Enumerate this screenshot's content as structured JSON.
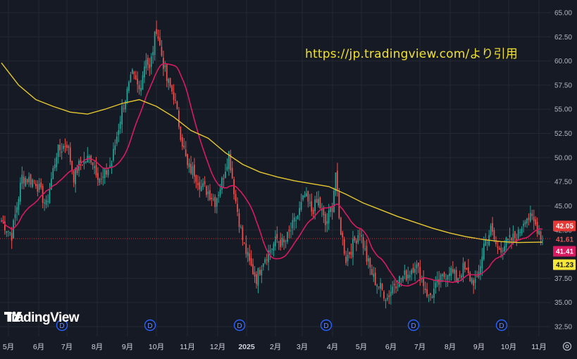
{
  "source_note": "https://jp.tradingview.com/より引用",
  "brand": {
    "name": "TradingView",
    "logo_icon": "tradingview-logo-icon"
  },
  "colors": {
    "background": "#161a25",
    "grid": "#242833",
    "up": "#26a69a",
    "down": "#ef5350",
    "ma_short": "#d81b60",
    "ma_long": "#e6c830",
    "price_line": "#d32f2f",
    "dividend_marker": "#2962ff",
    "source_note": "#f0e030"
  },
  "icons": {
    "settings": "gear-icon"
  },
  "chart_data": {
    "type": "candlestick",
    "title": "",
    "ylim": [
      32.5,
      65.0
    ],
    "y_ticks": [
      "65.00",
      "62.50",
      "60.00",
      "57.50",
      "55.00",
      "52.50",
      "50.00",
      "47.50",
      "45.00",
      "42.50",
      "40.00",
      "37.50",
      "35.00",
      "32.50"
    ],
    "x_ticks": [
      "5月",
      "6月",
      "7月",
      "8月",
      "9月",
      "10月",
      "11月",
      "12月",
      "2025",
      "2月",
      "3月",
      "4月",
      "5月",
      "6月",
      "7月",
      "8月",
      "9月",
      "10月",
      "11月"
    ],
    "close_path": [
      [
        0,
        43.5
      ],
      [
        6,
        42.0
      ],
      [
        12,
        48.0
      ],
      [
        20,
        47.5
      ],
      [
        26,
        45.0
      ],
      [
        32,
        50.5
      ],
      [
        38,
        51.5
      ],
      [
        42,
        48.0
      ],
      [
        46,
        49.5
      ],
      [
        52,
        50.0
      ],
      [
        58,
        47.5
      ],
      [
        64,
        49.5
      ],
      [
        70,
        55.0
      ],
      [
        76,
        58.5
      ],
      [
        80,
        57.0
      ],
      [
        84,
        60.5
      ],
      [
        86,
        59.0
      ],
      [
        90,
        63.5
      ],
      [
        92,
        61.5
      ],
      [
        96,
        58.0
      ],
      [
        100,
        56.5
      ],
      [
        104,
        52.5
      ],
      [
        108,
        49.0
      ],
      [
        112,
        48.5
      ],
      [
        116,
        47.0
      ],
      [
        120,
        46.5
      ],
      [
        124,
        45.5
      ],
      [
        128,
        47.5
      ],
      [
        132,
        50.5
      ],
      [
        136,
        45.5
      ],
      [
        140,
        41.5
      ],
      [
        144,
        39.0
      ],
      [
        148,
        37.5
      ],
      [
        152,
        39.5
      ],
      [
        156,
        40.5
      ],
      [
        160,
        41.5
      ],
      [
        164,
        41.0
      ],
      [
        168,
        42.5
      ],
      [
        172,
        44.0
      ],
      [
        176,
        46.0
      ],
      [
        180,
        44.5
      ],
      [
        184,
        45.5
      ],
      [
        188,
        43.0
      ],
      [
        192,
        45.0
      ],
      [
        194,
        48.5
      ],
      [
        196,
        43.5
      ],
      [
        200,
        39.5
      ],
      [
        204,
        41.0
      ],
      [
        208,
        42.5
      ],
      [
        212,
        39.5
      ],
      [
        216,
        37.5
      ],
      [
        220,
        36.5
      ],
      [
        224,
        35.5
      ],
      [
        228,
        37.0
      ],
      [
        232,
        37.5
      ],
      [
        236,
        38.0
      ],
      [
        240,
        39.0
      ],
      [
        244,
        37.5
      ],
      [
        248,
        35.5
      ],
      [
        252,
        36.5
      ],
      [
        256,
        37.5
      ],
      [
        260,
        38.5
      ],
      [
        264,
        37.5
      ],
      [
        268,
        38.5
      ],
      [
        272,
        37.5
      ],
      [
        276,
        37.0
      ],
      [
        280,
        41.0
      ],
      [
        284,
        42.5
      ],
      [
        288,
        40.5
      ],
      [
        292,
        41.0
      ],
      [
        296,
        41.5
      ],
      [
        300,
        42.0
      ],
      [
        304,
        44.0
      ],
      [
        308,
        43.5
      ],
      [
        312,
        42.5
      ],
      [
        314,
        41.5
      ]
    ],
    "ma_short": {
      "color": "#d81b60"
    },
    "ma_long": {
      "color": "#e6c830",
      "points": [
        [
          0,
          59.8
        ],
        [
          10,
          57.5
        ],
        [
          20,
          56.0
        ],
        [
          30,
          55.3
        ],
        [
          40,
          54.7
        ],
        [
          50,
          54.5
        ],
        [
          60,
          55.0
        ],
        [
          70,
          55.6
        ],
        [
          80,
          56.0
        ],
        [
          90,
          55.3
        ],
        [
          100,
          54.2
        ],
        [
          110,
          52.8
        ],
        [
          120,
          52.0
        ],
        [
          130,
          50.5
        ],
        [
          140,
          49.3
        ],
        [
          150,
          48.5
        ],
        [
          160,
          48.0
        ],
        [
          170,
          47.6
        ],
        [
          180,
          47.3
        ],
        [
          190,
          47.0
        ],
        [
          200,
          46.2
        ],
        [
          210,
          45.3
        ],
        [
          220,
          44.6
        ],
        [
          230,
          43.9
        ],
        [
          240,
          43.3
        ],
        [
          250,
          42.7
        ],
        [
          260,
          42.2
        ],
        [
          270,
          41.8
        ],
        [
          280,
          41.5
        ],
        [
          290,
          41.3
        ],
        [
          300,
          41.2
        ],
        [
          314,
          41.25
        ]
      ]
    },
    "current_price_line": 41.61,
    "price_tags": [
      {
        "value": "42.05",
        "kind": "last"
      },
      {
        "value": "41.61",
        "kind": "close"
      },
      {
        "value": "41.41",
        "kind": "ma_short"
      },
      {
        "value": "41.23",
        "kind": "ma_long"
      }
    ],
    "dividend_markers": [
      {
        "label": "D",
        "month": "6月"
      },
      {
        "label": "D",
        "month": "9月"
      },
      {
        "label": "D",
        "month": "12月"
      },
      {
        "label": "D",
        "month": "3月"
      },
      {
        "label": "D",
        "month": "6月"
      },
      {
        "label": "D",
        "month": "9月"
      }
    ]
  }
}
